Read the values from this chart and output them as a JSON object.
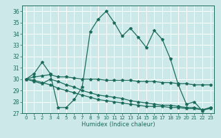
{
  "title": "",
  "xlabel": "Humidex (Indice chaleur)",
  "xlim": [
    -0.5,
    23.5
  ],
  "ylim": [
    27,
    36.5
  ],
  "yticks": [
    27,
    28,
    29,
    30,
    31,
    32,
    33,
    34,
    35,
    36
  ],
  "xticks": [
    0,
    1,
    2,
    3,
    4,
    5,
    6,
    7,
    8,
    9,
    10,
    11,
    12,
    13,
    14,
    15,
    16,
    17,
    18,
    19,
    20,
    21,
    22,
    23
  ],
  "bg_color": "#cce8e8",
  "line_color": "#1a6b5a",
  "lines": [
    {
      "x": [
        0,
        1,
        2,
        3,
        4,
        5,
        6,
        7,
        8,
        9,
        10,
        11,
        12,
        13,
        14,
        15,
        16,
        17,
        18,
        19,
        20,
        21,
        22,
        23
      ],
      "y": [
        30.0,
        30.5,
        31.5,
        30.5,
        27.5,
        27.5,
        28.2,
        29.3,
        34.2,
        35.3,
        36.0,
        35.0,
        33.8,
        34.5,
        33.7,
        32.8,
        34.3,
        33.5,
        31.8,
        29.5,
        27.8,
        28.0,
        27.2,
        27.5
      ]
    },
    {
      "x": [
        0,
        1,
        2,
        3,
        4,
        5,
        6,
        7,
        8,
        9,
        10,
        11,
        12,
        13,
        14,
        15,
        16,
        17,
        18,
        19,
        20,
        21,
        22,
        23
      ],
      "y": [
        30.0,
        30.2,
        30.3,
        30.4,
        30.2,
        30.2,
        30.1,
        30.0,
        30.0,
        30.0,
        29.9,
        29.9,
        29.9,
        29.9,
        29.8,
        29.8,
        29.8,
        29.7,
        29.7,
        29.6,
        29.6,
        29.5,
        29.5,
        29.5
      ]
    },
    {
      "x": [
        0,
        1,
        2,
        3,
        4,
        5,
        6,
        7,
        8,
        9,
        10,
        11,
        12,
        13,
        14,
        15,
        16,
        17,
        18,
        19,
        20,
        21,
        22,
        23
      ],
      "y": [
        30.0,
        29.8,
        29.6,
        30.0,
        29.8,
        29.5,
        29.3,
        29.0,
        28.8,
        28.6,
        28.5,
        28.4,
        28.3,
        28.1,
        28.0,
        27.9,
        27.8,
        27.7,
        27.7,
        27.6,
        27.5,
        27.5,
        27.3,
        27.5
      ]
    },
    {
      "x": [
        0,
        1,
        2,
        3,
        4,
        5,
        6,
        7,
        8,
        9,
        10,
        11,
        12,
        13,
        14,
        15,
        16,
        17,
        18,
        19,
        20,
        21,
        22,
        23
      ],
      "y": [
        30.0,
        29.9,
        29.7,
        29.5,
        29.2,
        29.0,
        28.8,
        28.6,
        28.4,
        28.2,
        28.1,
        28.0,
        27.9,
        27.8,
        27.7,
        27.6,
        27.6,
        27.6,
        27.5,
        27.5,
        27.4,
        27.4,
        27.3,
        27.4
      ]
    }
  ],
  "marker": "*",
  "marker_size": 3,
  "line_width": 0.9
}
